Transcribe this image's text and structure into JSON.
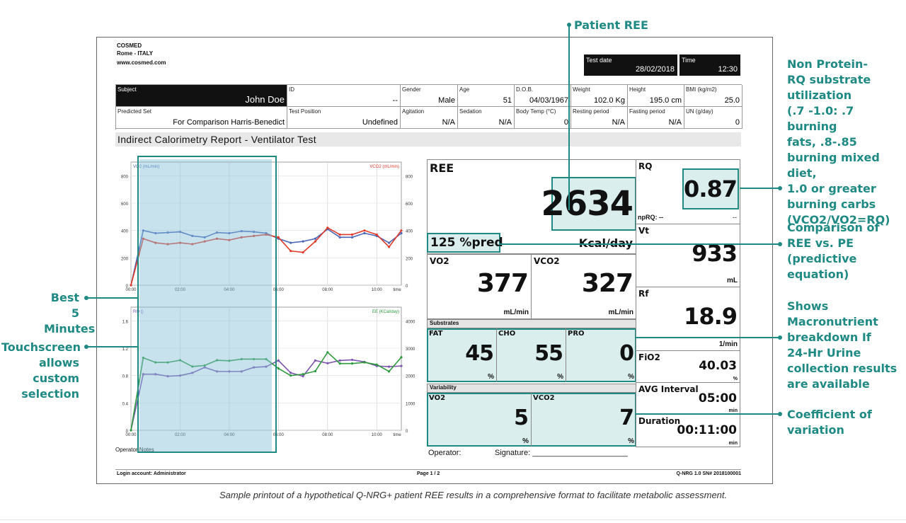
{
  "company": {
    "name": "COSMED",
    "city": "Rome - ITALY",
    "web": "www.cosmed.com"
  },
  "test": {
    "date_label": "Test date",
    "date": "28/02/2018",
    "time_label": "Time",
    "time": "12:30"
  },
  "info_row1": [
    {
      "label": "Subject",
      "value": "John Doe"
    },
    {
      "label": "ID",
      "value": "--"
    },
    {
      "label": "Gender",
      "value": "Male"
    },
    {
      "label": "Age",
      "value": "51"
    },
    {
      "label": "D.O.B.",
      "value": "04/03/1967"
    },
    {
      "label": "Weight",
      "value": "102.0 Kg"
    },
    {
      "label": "Height",
      "value": "195.0 cm"
    },
    {
      "label": "BMI (kg/m2)",
      "value": "25.0"
    }
  ],
  "info_row2": [
    {
      "label": "Predicted Set",
      "value": "For Comparison Harris-Benedict"
    },
    {
      "label": "Test Position",
      "value": "Undefined"
    },
    {
      "label": "Agitation",
      "value": "N/A"
    },
    {
      "label": "Sedation",
      "value": "N/A"
    },
    {
      "label": "Body Temp (°C)",
      "value": "0"
    },
    {
      "label": "Resting period",
      "value": "N/A"
    },
    {
      "label": "Fasting period",
      "value": "N/A"
    },
    {
      "label": "UN (g/day)",
      "value": "0"
    }
  ],
  "report_title": "Indirect Calorimetry Report - Ventilator Test",
  "results": {
    "ree_label": "REE",
    "ree_value": "2634",
    "ree_unit": "Kcal/day",
    "pred": "125 %pred",
    "vo2_label": "VO2",
    "vo2_value": "377",
    "vco2_label": "VCO2",
    "vco2_value": "327",
    "flow_unit": "mL/min",
    "substrates_label": "Substrates",
    "fat_label": "FAT",
    "fat_value": "45",
    "cho_label": "CHO",
    "cho_value": "55",
    "pro_label": "PRO",
    "pro_value": "0",
    "pct": "%",
    "variability_label": "Variability",
    "var_vo2_label": "VO2",
    "var_vo2_value": "5",
    "var_vco2_label": "VCO2",
    "var_vco2_value": "7",
    "rq_label": "RQ",
    "rq_value": "0.87",
    "nprq": "npRQ: --",
    "nprq_value": "--",
    "vt_label": "Vt",
    "vt_value": "933",
    "vt_unit": "mL",
    "rf_label": "Rf",
    "rf_value": "18.9",
    "rf_unit": "1/min",
    "fio2_label": "FiO2",
    "fio2_value": "40.03",
    "fio2_unit": "%",
    "avg_label": "AVG Interval",
    "avg_value": "05:00",
    "avg_unit": "min",
    "dur_label": "Duration",
    "dur_value": "00:11:00",
    "dur_unit": "min",
    "operator": "Operator:",
    "signature": "Signature: ______________________"
  },
  "operator_notes": "Operator Notes",
  "footer": {
    "login": "Login account: Administrator",
    "page": "Page 1 / 2",
    "version": "Q-NRG 1.0 SN# 2018100001"
  },
  "caption": "Sample printout of a hypothetical Q-NRG+ patient REE results in a comprehensive format to facilitate metabolic assessment.",
  "annotations": {
    "patient_ree": "Patient REE",
    "nprq": [
      "Non Protein-",
      "RQ substrate",
      "utilization",
      "(.7 -1.0: .7 burning",
      "fats, .8-.85",
      "burning mixed diet,",
      "1.0 or greater",
      "burning carbs",
      "(VCO2/VO2=RQ)"
    ],
    "comparison": [
      "Comparison of",
      "REE vs. PE",
      "(predictive equation)"
    ],
    "macro": [
      "Shows",
      "Macronutrient",
      "breakdown If",
      "24-Hr Urine",
      "collection results",
      "are available"
    ],
    "coef": [
      "Coefficient of",
      "variation"
    ],
    "best5": [
      "Best 5",
      "Minutes"
    ],
    "touch": [
      "Touchscreen",
      "allows",
      "custom",
      "selection"
    ]
  },
  "colors": {
    "accent": "#1f8a84",
    "vo2": "#4a67b8",
    "vco2": "#e03b2a",
    "rq": "#7e55b0",
    "ee": "#2e9a3e",
    "highlight": "#dbeeee",
    "selection": "#bcdbe8"
  },
  "chart_data": [
    {
      "type": "line",
      "x": [
        "00:00",
        "00:30",
        "01:00",
        "01:30",
        "02:00",
        "02:30",
        "03:00",
        "03:30",
        "04:00",
        "04:30",
        "05:00",
        "05:30",
        "06:00",
        "06:30",
        "07:00",
        "07:30",
        "08:00",
        "08:30",
        "09:00",
        "09:30",
        "10:00",
        "10:30",
        "11:00"
      ],
      "xticks": [
        "00:00",
        "02:00",
        "04:00",
        "06:00",
        "08:00",
        "10:00",
        "time"
      ],
      "series": [
        {
          "name": "VO2 (mL/min)",
          "axis": "left",
          "values": [
            0,
            400,
            380,
            385,
            390,
            360,
            350,
            385,
            380,
            395,
            390,
            380,
            340,
            310,
            320,
            340,
            410,
            350,
            350,
            380,
            360,
            310,
            380
          ]
        },
        {
          "name": "VCO2 (mL/min)",
          "axis": "right",
          "values": [
            0,
            340,
            310,
            300,
            310,
            300,
            320,
            340,
            330,
            350,
            360,
            370,
            350,
            250,
            240,
            320,
            420,
            370,
            370,
            400,
            370,
            280,
            400
          ]
        }
      ],
      "yleft": [
        0,
        200,
        400,
        600,
        800
      ],
      "yright": [
        0,
        200,
        400,
        600,
        800
      ],
      "ylim": [
        0,
        900
      ]
    },
    {
      "type": "line",
      "x": [
        "00:00",
        "00:30",
        "01:00",
        "01:30",
        "02:00",
        "02:30",
        "03:00",
        "03:30",
        "04:00",
        "04:30",
        "05:00",
        "05:30",
        "06:00",
        "06:30",
        "07:00",
        "07:30",
        "08:00",
        "08:30",
        "09:00",
        "09:30",
        "10:00",
        "10:30",
        "11:00"
      ],
      "xticks": [
        "00:00",
        "02:00",
        "04:00",
        "06:00",
        "08:00",
        "10:00",
        "time"
      ],
      "series": [
        {
          "name": "RQ ()",
          "axis": "left",
          "values": [
            0,
            0.82,
            0.82,
            0.79,
            0.8,
            0.84,
            0.92,
            0.86,
            0.86,
            0.86,
            0.92,
            0.93,
            1.02,
            0.84,
            0.79,
            1.02,
            0.98,
            1.02,
            1.03,
            1.0,
            0.94,
            0.93,
            0.94
          ]
        },
        {
          "name": "EE (KCal/day)",
          "axis": "right",
          "values": [
            0,
            2650,
            2480,
            2480,
            2560,
            2330,
            2370,
            2560,
            2540,
            2600,
            2600,
            2600,
            2260,
            2000,
            2050,
            2160,
            2850,
            2440,
            2440,
            2480,
            2400,
            2150,
            2670
          ]
        }
      ],
      "yleft": [
        0.0,
        0.4,
        0.8,
        1.2,
        1.6
      ],
      "yright": [
        0,
        1000,
        2000,
        3000,
        4000
      ],
      "ylim_left": [
        0,
        1.8
      ],
      "ylim_right": [
        0,
        4500
      ]
    }
  ]
}
